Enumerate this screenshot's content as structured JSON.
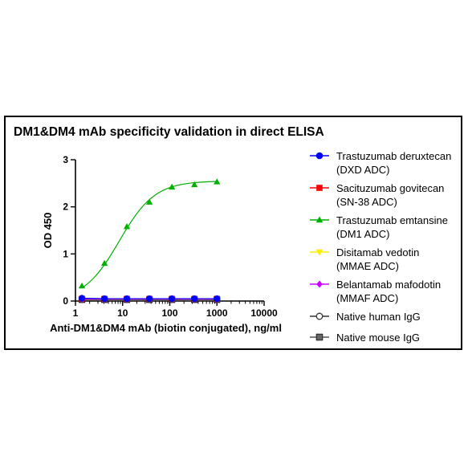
{
  "chart_data": {
    "type": "scatter",
    "title": "DM1&DM4 mAb specificity validation in direct ELISA",
    "xlabel": "Anti-DM1&DM4 mAb (biotin conjugated), ng/ml",
    "ylabel": "OD 450",
    "xscale": "log",
    "xlim": [
      1,
      10000
    ],
    "ylim": [
      0,
      3
    ],
    "x_ticks": [
      "1",
      "10",
      "100",
      "1000",
      "10000"
    ],
    "y_ticks": [
      "0",
      "1",
      "2",
      "3"
    ],
    "grid": false,
    "legend_position": "right",
    "x": [
      1.37,
      4.12,
      12.3,
      37,
      111,
      333,
      1000
    ],
    "series": [
      {
        "name": "Trastuzumab deruxtecan",
        "name_line2": "(DXD ADC)",
        "color": "#0000ff",
        "marker": "circle",
        "fit": false,
        "values": [
          0.06,
          0.05,
          0.05,
          0.05,
          0.05,
          0.05,
          0.05
        ]
      },
      {
        "name": "Sacituzumab govitecan",
        "name_line2": "(SN-38 ADC)",
        "color": "#ff0000",
        "marker": "square",
        "fit": false,
        "values": [
          0.05,
          0.05,
          0.05,
          0.05,
          0.05,
          0.05,
          0.05
        ]
      },
      {
        "name": "Trastuzumab emtansine",
        "name_line2": "(DM1 ADC)",
        "color": "#00b000",
        "marker": "triangle",
        "fit": true,
        "values": [
          0.32,
          0.8,
          1.58,
          2.1,
          2.42,
          2.47,
          2.53
        ]
      },
      {
        "name": "Disitamab vedotin",
        "name_line2": "(MMAE ADC)",
        "color": "#ffee00",
        "marker": "triangle-down",
        "fit": false,
        "values": [
          0.04,
          0.04,
          0.04,
          0.04,
          0.04,
          0.04,
          0.04
        ]
      },
      {
        "name": "Belantamab mafodotin",
        "name_line2": "(MMAF ADC)",
        "color": "#cc00ff",
        "marker": "diamond",
        "fit": false,
        "values": [
          0.04,
          0.04,
          0.04,
          0.04,
          0.04,
          0.04,
          0.04
        ]
      },
      {
        "name": "Native human IgG",
        "name_line2": "",
        "color": "#333333",
        "marker": "circle-open",
        "fit": false,
        "values": [
          0.03,
          0.03,
          0.03,
          0.03,
          0.03,
          0.03,
          0.03
        ]
      },
      {
        "name": "Native mouse IgG",
        "name_line2": "",
        "color": "#555555",
        "marker": "square-filled-gray",
        "fit": false,
        "values": [
          0.03,
          0.03,
          0.03,
          0.03,
          0.03,
          0.03,
          0.03
        ]
      }
    ]
  }
}
